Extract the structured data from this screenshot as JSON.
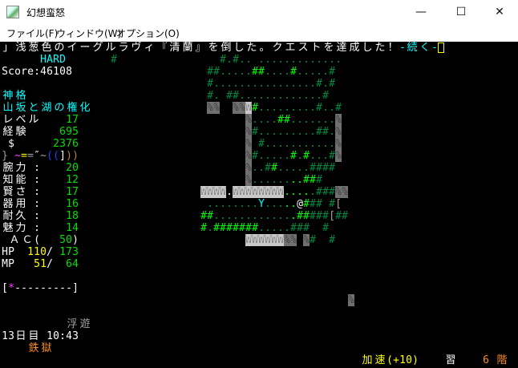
{
  "window": {
    "title": "幻想蛮怒",
    "minimize": "—",
    "maximize": "☐",
    "close": "✕"
  },
  "menu": [
    "ファイル(F)",
    "ウィンドウ(W)",
    "オプション(O)"
  ],
  "message": {
    "text": "」浅葱色のイーグルラヴィ『清蘭』を倒した。クエストを達成した！",
    "more": "-続く-"
  },
  "difficulty": "HARD",
  "score": "Score:46108",
  "player": {
    "title": "神格",
    "race_class": "山坂と湖の権化",
    "level_label": "レベル",
    "level": "17",
    "exp_label": "経験",
    "exp": "695",
    "gold_label": "$",
    "gold": "2376",
    "equipment": [
      {
        "glyph": "}",
        "color": "#a0a0a0"
      },
      {
        "glyph": "~",
        "color": "#ff40ff"
      },
      {
        "glyph": "=",
        "color": "#ffff00"
      },
      {
        "glyph": "=",
        "color": "#a0a0a0"
      },
      {
        "glyph": "″",
        "color": "#ffffff"
      },
      {
        "glyph": "~",
        "color": "#a0a0a0"
      },
      {
        "glyph": "(",
        "color": "#2040ff"
      },
      {
        "glyph": "(",
        "color": "#2040ff"
      },
      {
        "glyph": "]",
        "color": "#ffffff"
      },
      {
        "glyph": ")",
        "color": "#c08040"
      },
      {
        "glyph": ")",
        "color": "#c08040"
      }
    ],
    "stats": [
      {
        "label": "腕力 :",
        "value": "20"
      },
      {
        "label": "知能 :",
        "value": "12"
      },
      {
        "label": "賢さ :",
        "value": "17"
      },
      {
        "label": "器用 :",
        "value": "16"
      },
      {
        "label": "耐久 :",
        "value": "18"
      },
      {
        "label": "魅力 :",
        "value": "14"
      }
    ],
    "ac_label": "ＡＣ(",
    "ac": "50",
    "ac_close": ")",
    "hp_label": "HP",
    "hp": "110",
    "hp_max": "173",
    "mp_label": "MP",
    "mp": "51",
    "mp_max": "64",
    "slash": "/"
  },
  "health_bar": {
    "open": "[",
    "star": "*",
    "dashes": "---------",
    "close": "]"
  },
  "status": {
    "levitation": "浮遊",
    "day_time": "13日目 10:43",
    "dungeon": "鉄獄",
    "speed": "加速(+10)",
    "study": "習",
    "depth": "6 階"
  },
  "map": {
    "extra_wall": "#",
    "rows": [
      "    #.#.. .............",
      "  ##.....##....#.....#",
      "  #................#.#",
      "  #. ##.............#",
      "  %%  %%W#.........#..#",
      "        %....##.......%",
      "        %#.........##.%",
      "        % #...........%",
      "        %#.....#.#...#%",
      "        %..##.....####",
      "        %........###",
      " WWWW.WWWWWWWW.....###%%",
      "  ........Y.....@### #[",
      " ##.............#####[##",
      " #.#######.....###  #",
      "        WWWWWW%% %#  #",
      "",
      "",
      "",
      "",
      "                        %"
    ],
    "color_rows": [
      "    ddddd ddddddddddddd",
      "  dddddddggddddgdddddd",
      "  dddddddddddddddddddd",
      "  dd ddddddddddddddddd",
      "  xx  xxwgddddddddddddd",
      "        xddddggdddddddx",
      "        xdddddddddddddx",
      "        x ddddddddddddx",
      "        xddddddgdgddddx",
      "        xdddgddddddddd",
      "        xddddddggggd",
      " wwwwwwwwwwwwwggggddddxx",
      "  ddddddddcdddggwgdd dx",
      " ggddddddddddddgggdddxdd",
      " gdgggggggdddddddd  d",
      "        wwwwwwxx xd  d",
      "",
      "",
      "",
      "",
      "                        x"
    ],
    "palette": {
      "d": "#008a40",
      "g": "#00ff00",
      "w": "#ffffff",
      "c": "#00ffff",
      "x": "#a0a0a0"
    }
  }
}
